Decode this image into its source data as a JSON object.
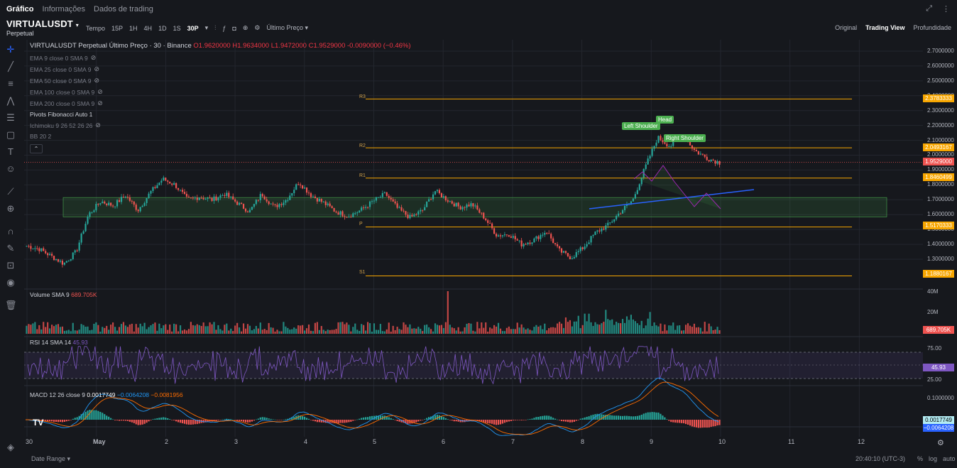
{
  "nav": {
    "tabs": [
      "Gráfico",
      "Informações",
      "Dados de trading"
    ],
    "active": 0
  },
  "symbol": {
    "name": "VIRTUALUSDT",
    "sub": "Perpetual"
  },
  "toolbar": {
    "items": [
      "Tempo",
      "15P",
      "1H",
      "4H",
      "1D",
      "1S",
      "30P"
    ],
    "last_price_label": "Último Preço"
  },
  "views": [
    "Original",
    "Trading View",
    "Profundidade"
  ],
  "title_line": {
    "desc": "VIRTUALUSDT Perpetual Último Preço · 30 · Binance",
    "o": "O1.9620000",
    "h": "H1.9634000",
    "l": "L1.9472000",
    "c": "C1.9529000",
    "chg": "-0.0090000 (−0.46%)"
  },
  "indicators": [
    "EMA 9 close 0 SMA 9",
    "EMA 25 close 0 SMA 9",
    "EMA 50 close 0 SMA 9",
    "EMA 100 close 0 SMA 9",
    "EMA 200 close 0 SMA 9",
    "Pivots Fibonacci Auto 1",
    "Ichimoku 9 26 52 26 26",
    "BB 20 2"
  ],
  "pivots": [
    {
      "name": "R3",
      "value": "2.3783333",
      "price": 2.3783
    },
    {
      "name": "R2",
      "value": "2.0493167",
      "price": 2.0493
    },
    {
      "name": "R1",
      "value": "1.8460499",
      "price": 1.846
    },
    {
      "name": "P",
      "value": "1.5170333",
      "price": 1.517
    },
    {
      "name": "S1",
      "value": "1.1880167",
      "price": 1.188
    }
  ],
  "price_axis": [
    "2.7000000",
    "2.6000000",
    "2.5000000",
    "2.4000000",
    "2.3000000",
    "2.2000000",
    "2.1000000",
    "2.0000000",
    "1.9000000",
    "1.8000000",
    "1.7000000",
    "1.6000000",
    "1.5000000",
    "1.4000000",
    "1.3000000"
  ],
  "current_price": "1.9529000",
  "pattern_labels": [
    "Left Shoulder",
    "Head",
    "Right Shoulder"
  ],
  "volume": {
    "legend": "Volume SMA 9",
    "value": "689.705K",
    "axis": [
      "40M",
      "20M"
    ]
  },
  "rsi": {
    "legend": "RSI 14 SMA 14",
    "value": "45.93",
    "axis": [
      "75.00",
      "25.00"
    ]
  },
  "macd": {
    "legend": "MACD 12 26 close 9",
    "v1": "0.0017749",
    "v2": "−0.0064208",
    "v3": "−0.0081956",
    "axis": [
      "0.1000000"
    ],
    "tag1": "0.0017749",
    "tag2": "−0.0064208"
  },
  "xaxis": [
    "30",
    "May",
    "2",
    "3",
    "4",
    "5",
    "6",
    "7",
    "8",
    "9",
    "10",
    "11",
    "12"
  ],
  "footer": {
    "range": "Date Range",
    "time": "20:40:10 (UTC-3)",
    "pct": "%",
    "log": "log",
    "auto": "auto"
  },
  "colors": {
    "up": "#26a69a",
    "down": "#ef5350",
    "pivot": "#f7a600",
    "bg": "#16181d"
  },
  "chart_data": {
    "type": "candlestick",
    "title": "VIRTUALUSDT Perpetual Último Preço · 30 · Binance",
    "xlabel": "",
    "ylabel": "",
    "ylim": [
      1.2,
      2.75
    ],
    "x_days": [
      "30",
      "May",
      "2",
      "3",
      "4",
      "5",
      "6",
      "7",
      "8",
      "9",
      "10"
    ],
    "path": [
      1.39,
      1.37,
      1.32,
      1.27,
      1.35,
      1.6,
      1.69,
      1.66,
      1.73,
      1.63,
      1.75,
      1.84,
      1.8,
      1.7,
      1.72,
      1.7,
      1.74,
      1.68,
      1.62,
      1.74,
      1.65,
      1.7,
      1.82,
      1.73,
      1.68,
      1.62,
      1.59,
      1.63,
      1.69,
      1.74,
      1.64,
      1.58,
      1.63,
      1.76,
      1.7,
      1.65,
      1.67,
      1.58,
      1.46,
      1.47,
      1.4,
      1.43,
      1.49,
      1.36,
      1.31,
      1.38,
      1.48,
      1.53,
      1.62,
      1.7,
      1.92,
      2.12,
      2.06,
      2.14,
      2.03,
      1.98,
      1.95
    ]
  }
}
